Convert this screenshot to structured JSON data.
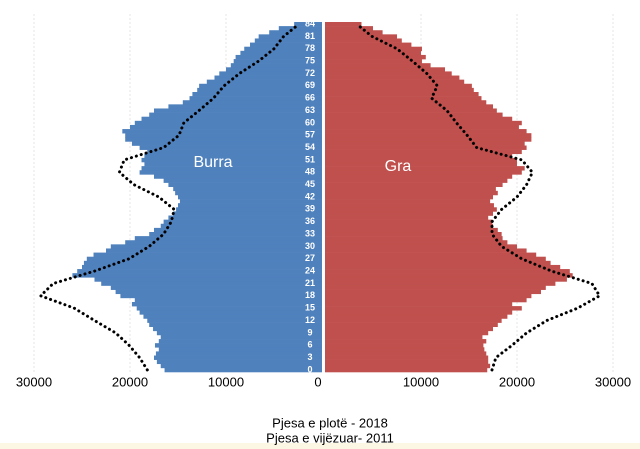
{
  "chart_data": {
    "type": "population_pyramid",
    "categories": [
      "0",
      null,
      null,
      "3",
      null,
      null,
      "6",
      null,
      null,
      "9",
      null,
      null,
      "12",
      null,
      null,
      "15",
      null,
      null,
      "18",
      null,
      null,
      "21",
      null,
      null,
      "24",
      null,
      null,
      "27",
      null,
      null,
      "30",
      null,
      null,
      "33",
      null,
      null,
      "36",
      null,
      null,
      "39",
      null,
      null,
      "42",
      null,
      null,
      "45",
      null,
      null,
      "48",
      null,
      null,
      "51",
      null,
      null,
      "54",
      null,
      null,
      "57",
      null,
      null,
      "60",
      null,
      null,
      "63",
      null,
      null,
      "66",
      null,
      null,
      "69",
      null,
      null,
      "72",
      null,
      null,
      "75",
      null,
      null,
      "78",
      null,
      null,
      "81",
      null,
      null,
      "84"
    ],
    "series": [
      {
        "name": "Burra",
        "side": "left",
        "color": "#4f81bd",
        "values": [
          16400,
          16800,
          17200,
          17500,
          17300,
          17000,
          17400,
          17000,
          16800,
          17200,
          17600,
          18000,
          18200,
          18600,
          19000,
          19300,
          19800,
          19500,
          21000,
          21500,
          22000,
          23000,
          23700,
          26000,
          25500,
          25000,
          24800,
          24500,
          23800,
          22500,
          22000,
          20500,
          19500,
          18000,
          17500,
          16800,
          16500,
          16000,
          15500,
          15200,
          15000,
          14800,
          15000,
          15300,
          15500,
          16000,
          16500,
          17500,
          19000,
          18800,
          18500,
          18800,
          18500,
          18200,
          19000,
          19800,
          20500,
          20500,
          20800,
          20000,
          19500,
          18800,
          18000,
          17500,
          16000,
          14500,
          13800,
          13500,
          13000,
          12800,
          12000,
          11200,
          10700,
          10000,
          9500,
          9200,
          9000,
          8500,
          8100,
          7500,
          7000,
          6600,
          5500,
          4500,
          2900
        ]
      },
      {
        "name": "Gra",
        "side": "right",
        "color": "#c0504d",
        "values": [
          16900,
          17200,
          17000,
          17000,
          16800,
          16600,
          16500,
          16800,
          16400,
          17000,
          17500,
          18000,
          18400,
          19000,
          19500,
          20500,
          19500,
          21000,
          21500,
          22500,
          23000,
          24000,
          25200,
          25800,
          25500,
          24500,
          23500,
          23000,
          22000,
          21000,
          20000,
          19000,
          18500,
          18400,
          18000,
          17500,
          17400,
          17000,
          17500,
          17900,
          17600,
          17200,
          17500,
          18000,
          17800,
          18500,
          19000,
          19500,
          20500,
          20800,
          20000,
          20000,
          19500,
          20500,
          21000,
          20800,
          21500,
          21500,
          21000,
          20200,
          20500,
          19500,
          18500,
          17900,
          17500,
          16800,
          16300,
          16000,
          15500,
          15300,
          14500,
          14000,
          13200,
          12500,
          11000,
          10100,
          10500,
          10000,
          10100,
          9000,
          8000,
          7500,
          6000,
          5000,
          3800
        ]
      }
    ],
    "lines": [
      {
        "side": "left",
        "color": "#000000",
        "ages": [
          0,
          3,
          6,
          9,
          12,
          15,
          18,
          21,
          24,
          27,
          30,
          33,
          36,
          39,
          42,
          45,
          48,
          51,
          54,
          57,
          60,
          63,
          66,
          69,
          72,
          75,
          78,
          81,
          84
        ],
        "values": [
          18200,
          19000,
          20100,
          21500,
          23700,
          25800,
          29300,
          28000,
          23700,
          20100,
          18000,
          16500,
          15700,
          15400,
          17000,
          19600,
          21100,
          20600,
          16500,
          14900,
          14400,
          12800,
          11300,
          10200,
          8600,
          6600,
          5000,
          4000,
          2400
        ]
      },
      {
        "side": "right",
        "color": "#000000",
        "ages": [
          0,
          3,
          6,
          9,
          12,
          15,
          18,
          21,
          24,
          27,
          30,
          33,
          36,
          39,
          42,
          45,
          48,
          51,
          54,
          57,
          60,
          63,
          66,
          69,
          72,
          75,
          78,
          81,
          84
        ],
        "values": [
          17400,
          17800,
          19500,
          21000,
          23100,
          26300,
          28600,
          27800,
          23600,
          20500,
          18400,
          17400,
          17400,
          18400,
          20000,
          21000,
          21600,
          20500,
          15800,
          14800,
          13700,
          12700,
          11100,
          11700,
          10600,
          9100,
          7500,
          4900,
          3300
        ]
      }
    ],
    "xlim": [
      0,
      30000
    ],
    "xticks": [
      0,
      10000,
      20000,
      30000
    ],
    "grid": true,
    "notes": [
      "Pjesa e plotë - 2018",
      "Pjesa e vijëzuar-  2011"
    ]
  }
}
